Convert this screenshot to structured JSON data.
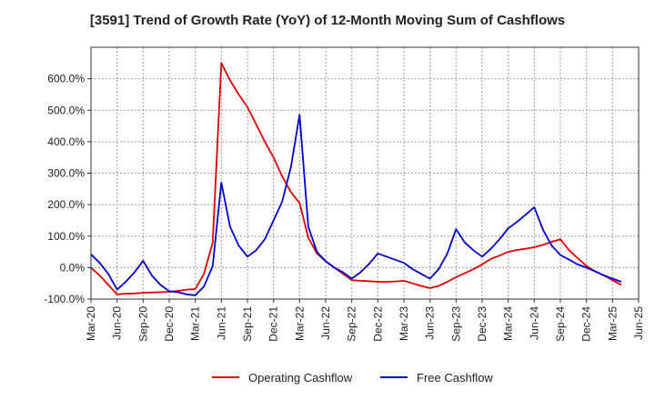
{
  "title": "[3591]  Trend of Growth Rate (YoY) of 12-Month Moving Sum of Cashflows",
  "colors": {
    "operating": "#e00000",
    "free": "#0000cc",
    "grid": "#999999",
    "axis": "#333333"
  },
  "chart_data": {
    "type": "line",
    "title": "[3591]  Trend of Growth Rate (YoY) of 12-Month Moving Sum of Cashflows",
    "xlabel": "",
    "ylabel": "",
    "ylim": [
      -100,
      700
    ],
    "xlim": [
      "2020-03",
      "2025-06"
    ],
    "grid": true,
    "legend_position": "bottom",
    "x_ticks": [
      "Mar-20",
      "Jun-20",
      "Sep-20",
      "Dec-20",
      "Mar-21",
      "Jun-21",
      "Sep-21",
      "Dec-21",
      "Mar-22",
      "Jun-22",
      "Sep-22",
      "Dec-22",
      "Mar-23",
      "Jun-23",
      "Sep-23",
      "Dec-23",
      "Mar-24",
      "Jun-24",
      "Sep-24",
      "Dec-24",
      "Mar-25",
      "Jun-25"
    ],
    "y_ticks": [
      {
        "value": -100,
        "label": "-100.0%"
      },
      {
        "value": 0,
        "label": "0.0%"
      },
      {
        "value": 100,
        "label": "100.0%"
      },
      {
        "value": 200,
        "label": "200.0%"
      },
      {
        "value": 300,
        "label": "300.0%"
      },
      {
        "value": 400,
        "label": "400.0%"
      },
      {
        "value": 500,
        "label": "500.0%"
      },
      {
        "value": 600,
        "label": "600.0%"
      }
    ],
    "series": [
      {
        "name": "Operating Cashflow",
        "color": "#e00000",
        "points": [
          [
            "2020-03",
            0
          ],
          [
            "2020-04",
            -25
          ],
          [
            "2020-05",
            -55
          ],
          [
            "2020-06",
            -85
          ],
          [
            "2020-07",
            -83
          ],
          [
            "2020-08",
            -82
          ],
          [
            "2020-09",
            -80
          ],
          [
            "2020-10",
            -79
          ],
          [
            "2020-11",
            -78
          ],
          [
            "2020-12",
            -77
          ],
          [
            "2021-01",
            -74
          ],
          [
            "2021-02",
            -70
          ],
          [
            "2021-03",
            -68
          ],
          [
            "2021-04",
            -20
          ],
          [
            "2021-05",
            80
          ],
          [
            "2021-06",
            650
          ],
          [
            "2021-07",
            595
          ],
          [
            "2021-08",
            550
          ],
          [
            "2021-09",
            510
          ],
          [
            "2021-10",
            455
          ],
          [
            "2021-11",
            400
          ],
          [
            "2021-12",
            350
          ],
          [
            "2022-01",
            290
          ],
          [
            "2022-02",
            240
          ],
          [
            "2022-03",
            205
          ],
          [
            "2022-04",
            95
          ],
          [
            "2022-05",
            45
          ],
          [
            "2022-06",
            20
          ],
          [
            "2022-07",
            0
          ],
          [
            "2022-08",
            -20
          ],
          [
            "2022-09",
            -40
          ],
          [
            "2022-10",
            -42
          ],
          [
            "2022-11",
            -43
          ],
          [
            "2022-12",
            -45
          ],
          [
            "2023-01",
            -45
          ],
          [
            "2023-02",
            -44
          ],
          [
            "2023-03",
            -42
          ],
          [
            "2023-04",
            -50
          ],
          [
            "2023-05",
            -58
          ],
          [
            "2023-06",
            -65
          ],
          [
            "2023-07",
            -58
          ],
          [
            "2023-08",
            -45
          ],
          [
            "2023-09",
            -30
          ],
          [
            "2023-10",
            -18
          ],
          [
            "2023-11",
            -5
          ],
          [
            "2023-12",
            10
          ],
          [
            "2024-01",
            28
          ],
          [
            "2024-02",
            38
          ],
          [
            "2024-03",
            50
          ],
          [
            "2024-04",
            56
          ],
          [
            "2024-05",
            60
          ],
          [
            "2024-06",
            65
          ],
          [
            "2024-07",
            72
          ],
          [
            "2024-08",
            82
          ],
          [
            "2024-09",
            90
          ],
          [
            "2024-10",
            55
          ],
          [
            "2024-11",
            30
          ],
          [
            "2024-12",
            5
          ],
          [
            "2025-01",
            -12
          ],
          [
            "2025-02",
            -25
          ],
          [
            "2025-03",
            -40
          ],
          [
            "2025-04",
            -55
          ]
        ]
      },
      {
        "name": "Free Cashflow",
        "color": "#0000cc",
        "points": [
          [
            "2020-03",
            42
          ],
          [
            "2020-04",
            15
          ],
          [
            "2020-05",
            -20
          ],
          [
            "2020-06",
            -70
          ],
          [
            "2020-07",
            -45
          ],
          [
            "2020-08",
            -15
          ],
          [
            "2020-09",
            22
          ],
          [
            "2020-10",
            -25
          ],
          [
            "2020-11",
            -55
          ],
          [
            "2020-12",
            -75
          ],
          [
            "2021-01",
            -78
          ],
          [
            "2021-02",
            -85
          ],
          [
            "2021-03",
            -88
          ],
          [
            "2021-04",
            -60
          ],
          [
            "2021-05",
            5
          ],
          [
            "2021-06",
            270
          ],
          [
            "2021-07",
            130
          ],
          [
            "2021-08",
            70
          ],
          [
            "2021-09",
            35
          ],
          [
            "2021-10",
            55
          ],
          [
            "2021-11",
            90
          ],
          [
            "2021-12",
            150
          ],
          [
            "2022-01",
            210
          ],
          [
            "2022-02",
            320
          ],
          [
            "2022-03",
            485
          ],
          [
            "2022-04",
            130
          ],
          [
            "2022-05",
            50
          ],
          [
            "2022-06",
            20
          ],
          [
            "2022-07",
            0
          ],
          [
            "2022-08",
            -15
          ],
          [
            "2022-09",
            -35
          ],
          [
            "2022-10",
            -15
          ],
          [
            "2022-11",
            12
          ],
          [
            "2022-12",
            45
          ],
          [
            "2023-01",
            35
          ],
          [
            "2023-02",
            25
          ],
          [
            "2023-03",
            15
          ],
          [
            "2023-04",
            -5
          ],
          [
            "2023-05",
            -20
          ],
          [
            "2023-06",
            -35
          ],
          [
            "2023-07",
            -5
          ],
          [
            "2023-08",
            45
          ],
          [
            "2023-09",
            122
          ],
          [
            "2023-10",
            80
          ],
          [
            "2023-11",
            55
          ],
          [
            "2023-12",
            35
          ],
          [
            "2024-01",
            60
          ],
          [
            "2024-02",
            90
          ],
          [
            "2024-03",
            125
          ],
          [
            "2024-04",
            145
          ],
          [
            "2024-05",
            168
          ],
          [
            "2024-06",
            192
          ],
          [
            "2024-07",
            120
          ],
          [
            "2024-08",
            70
          ],
          [
            "2024-09",
            40
          ],
          [
            "2024-10",
            25
          ],
          [
            "2024-11",
            10
          ],
          [
            "2024-12",
            0
          ],
          [
            "2025-01",
            -12
          ],
          [
            "2025-02",
            -25
          ],
          [
            "2025-03",
            -35
          ],
          [
            "2025-04",
            -45
          ]
        ]
      }
    ]
  }
}
